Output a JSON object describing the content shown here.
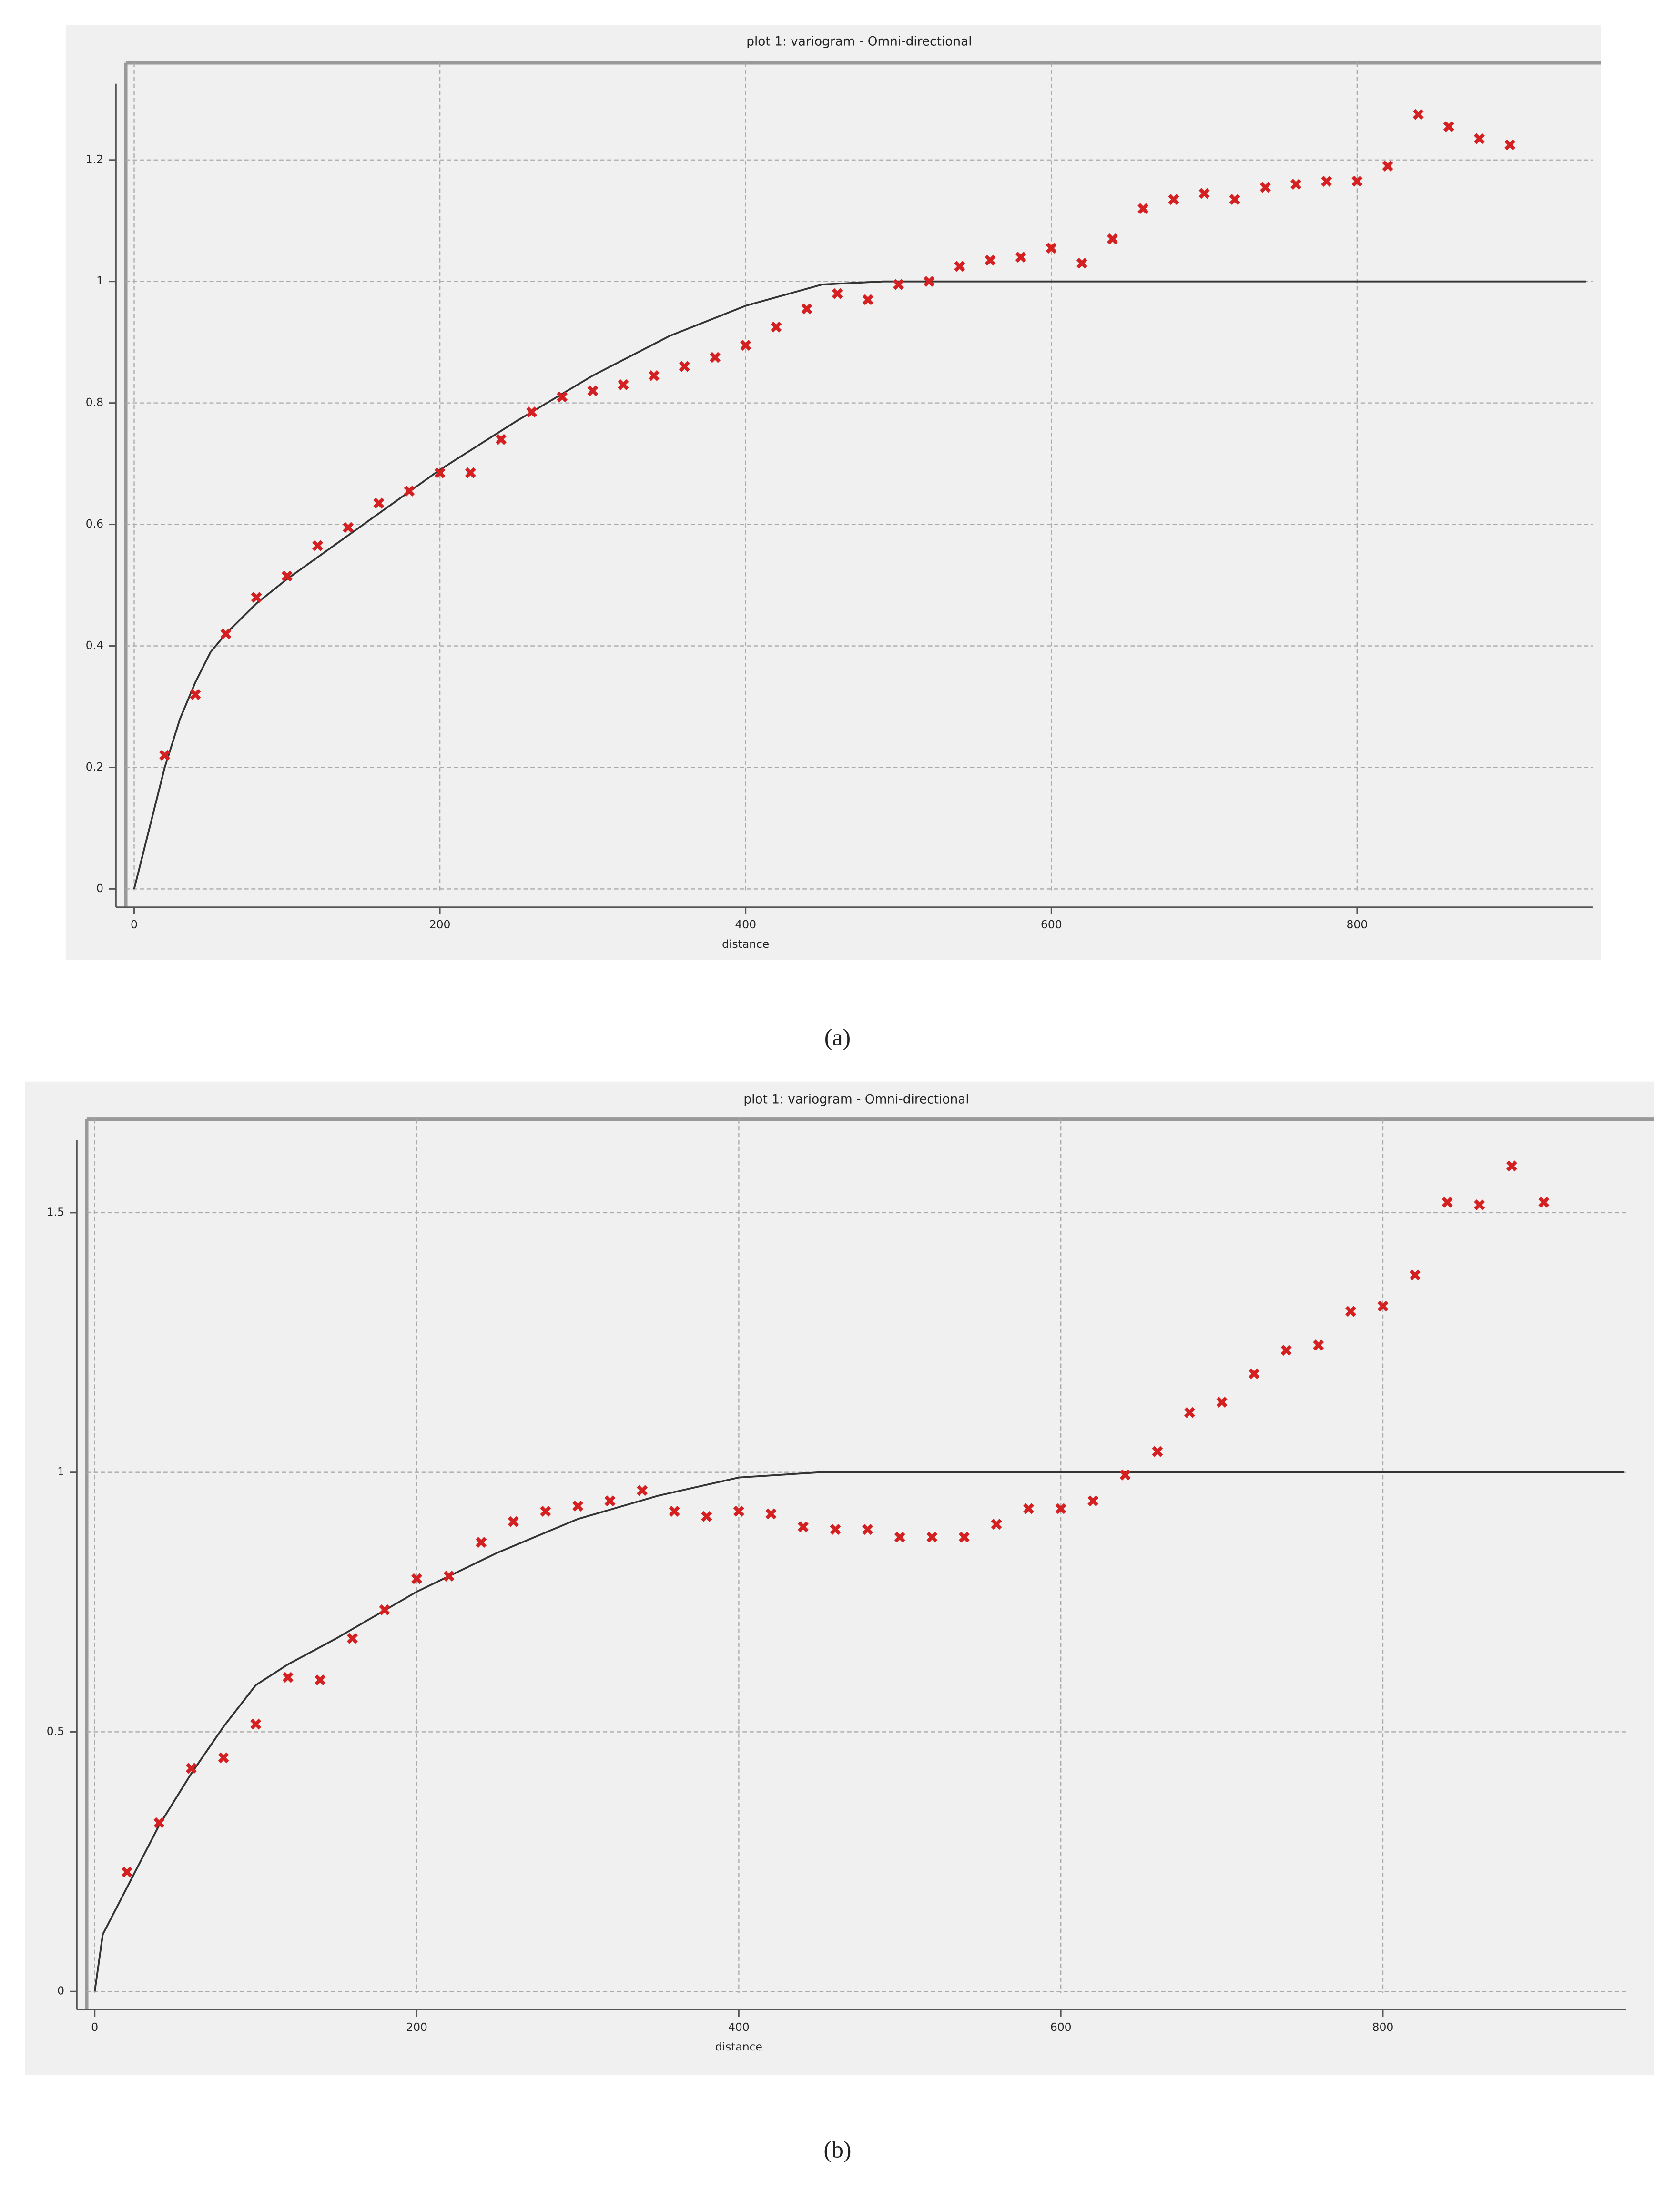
{
  "chart_data": [
    {
      "type": "scatter",
      "title": "plot 1:  variogram - Omni-directional",
      "x_label": "distance",
      "caption": "(a)",
      "xlim": [
        -5.5,
        954
      ],
      "ylim": [
        -0.03,
        1.36
      ],
      "xticks": [
        0,
        200,
        400,
        600,
        800
      ],
      "yticks": [
        0,
        0.2,
        0.4,
        0.6,
        0.8,
        1,
        1.2
      ],
      "grid": true,
      "series": [
        {
          "type": "line",
          "color": "#333333",
          "x": [
            0,
            10,
            20,
            30,
            40,
            50,
            60,
            80,
            100,
            150,
            200,
            250,
            300,
            350,
            400,
            450,
            490,
            950
          ],
          "values": [
            0,
            0.1,
            0.2,
            0.28,
            0.34,
            0.39,
            0.42,
            0.47,
            0.51,
            0.6,
            0.69,
            0.77,
            0.845,
            0.91,
            0.96,
            0.995,
            1,
            1
          ]
        },
        {
          "type": "scatter",
          "color": "#d42020",
          "x": [
            20,
            40,
            60,
            80,
            100,
            120,
            140,
            160,
            180,
            200,
            220,
            240,
            260,
            280,
            300,
            320,
            340,
            360,
            380,
            400,
            420,
            440,
            460,
            480,
            500,
            520,
            540,
            560,
            580,
            600,
            620,
            640,
            660,
            680,
            700,
            720,
            740,
            760,
            780,
            800,
            820,
            840,
            860,
            880,
            900
          ],
          "values": [
            0.22,
            0.32,
            0.42,
            0.48,
            0.515,
            0.565,
            0.595,
            0.635,
            0.655,
            0.685,
            0.685,
            0.74,
            0.785,
            0.81,
            0.82,
            0.83,
            0.845,
            0.86,
            0.875,
            0.895,
            0.925,
            0.955,
            0.98,
            0.97,
            0.995,
            1.0,
            1.025,
            1.035,
            1.04,
            1.055,
            1.03,
            1.07,
            1.12,
            1.135,
            1.145,
            1.135,
            1.155,
            1.16,
            1.165,
            1.165,
            1.19,
            1.275,
            1.255,
            1.235,
            1.225
          ]
        }
      ]
    },
    {
      "type": "scatter",
      "title": "plot 1:  variogram - Omni-directional",
      "x_label": "distance",
      "caption": "(b)",
      "xlim": [
        -5,
        951
      ],
      "ylim": [
        -0.035,
        1.68
      ],
      "xticks": [
        0,
        200,
        400,
        600,
        800
      ],
      "yticks": [
        0,
        0.5,
        1,
        1.5
      ],
      "grid": true,
      "series": [
        {
          "type": "line",
          "color": "#333333",
          "x": [
            0,
            5,
            20,
            40,
            60,
            80,
            100,
            120,
            150,
            200,
            250,
            300,
            350,
            400,
            450,
            950
          ],
          "values": [
            0,
            0.11,
            0.2,
            0.32,
            0.42,
            0.51,
            0.59,
            0.63,
            0.68,
            0.77,
            0.845,
            0.91,
            0.955,
            0.99,
            1,
            1
          ]
        },
        {
          "type": "scatter",
          "color": "#d42020",
          "x": [
            20,
            40,
            60,
            80,
            100,
            120,
            140,
            160,
            180,
            200,
            220,
            240,
            260,
            280,
            300,
            320,
            340,
            360,
            380,
            400,
            420,
            440,
            460,
            480,
            500,
            520,
            540,
            560,
            580,
            600,
            620,
            640,
            660,
            680,
            700,
            720,
            740,
            760,
            780,
            800,
            820,
            840,
            860,
            880,
            900
          ],
          "values": [
            0.23,
            0.325,
            0.43,
            0.45,
            0.515,
            0.605,
            0.6,
            0.68,
            0.735,
            0.795,
            0.8,
            0.865,
            0.905,
            0.925,
            0.935,
            0.945,
            0.965,
            0.925,
            0.915,
            0.925,
            0.92,
            0.895,
            0.89,
            0.89,
            0.875,
            0.875,
            0.875,
            0.9,
            0.93,
            0.93,
            0.945,
            0.995,
            1.04,
            1.115,
            1.135,
            1.19,
            1.235,
            1.245,
            1.31,
            1.32,
            1.38,
            1.52,
            1.515,
            1.59,
            1.52
          ]
        }
      ]
    }
  ]
}
